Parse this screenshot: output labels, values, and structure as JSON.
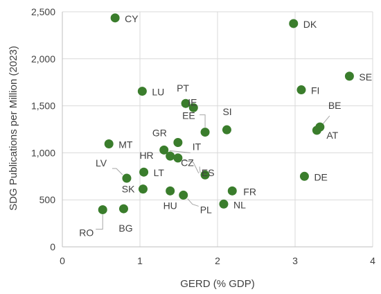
{
  "chart_data": {
    "type": "scatter",
    "title": "",
    "xlabel": "GERD (% GDP)",
    "ylabel": "SDG Publications per Million (2023)",
    "xlim": [
      0,
      4
    ],
    "ylim": [
      0,
      2500
    ],
    "x_ticks": [
      "0",
      "1",
      "2",
      "3",
      "4"
    ],
    "y_ticks": [
      "0",
      "500",
      "1,000",
      "1,500",
      "2,000",
      "2,500"
    ],
    "grid": true,
    "marker_color": "#3a7d2c",
    "points": [
      {
        "label": "CY",
        "x": 0.68,
        "y": 2435
      },
      {
        "label": "DK",
        "x": 2.98,
        "y": 2375
      },
      {
        "label": "SE",
        "x": 3.7,
        "y": 1815
      },
      {
        "label": "LU",
        "x": 1.03,
        "y": 1655
      },
      {
        "label": "FI",
        "x": 3.08,
        "y": 1670
      },
      {
        "label": "PT",
        "x": 1.59,
        "y": 1525
      },
      {
        "label": "IE",
        "x": 1.69,
        "y": 1480
      },
      {
        "label": "BE",
        "x": 3.32,
        "y": 1275
      },
      {
        "label": "AT",
        "x": 3.28,
        "y": 1240
      },
      {
        "label": "EE",
        "x": 1.84,
        "y": 1220
      },
      {
        "label": "SI",
        "x": 2.12,
        "y": 1245
      },
      {
        "label": "GR",
        "x": 1.49,
        "y": 1110
      },
      {
        "label": "MT",
        "x": 0.6,
        "y": 1095
      },
      {
        "label": "IT",
        "x": 1.31,
        "y": 1030
      },
      {
        "label": "HR",
        "x": 1.39,
        "y": 965
      },
      {
        "label": "ES",
        "x": 1.49,
        "y": 945
      },
      {
        "label": "CZ",
        "x": 1.84,
        "y": 765
      },
      {
        "label": "LT",
        "x": 1.05,
        "y": 795
      },
      {
        "label": "LV",
        "x": 0.83,
        "y": 730
      },
      {
        "label": "DE",
        "x": 3.12,
        "y": 750
      },
      {
        "label": "SK",
        "x": 1.04,
        "y": 615
      },
      {
        "label": "HU",
        "x": 1.39,
        "y": 595
      },
      {
        "label": "FR",
        "x": 2.19,
        "y": 595
      },
      {
        "label": "PL",
        "x": 1.56,
        "y": 550
      },
      {
        "label": "NL",
        "x": 2.08,
        "y": 455
      },
      {
        "label": "RO",
        "x": 0.52,
        "y": 395
      },
      {
        "label": "BG",
        "x": 0.79,
        "y": 405
      }
    ]
  }
}
